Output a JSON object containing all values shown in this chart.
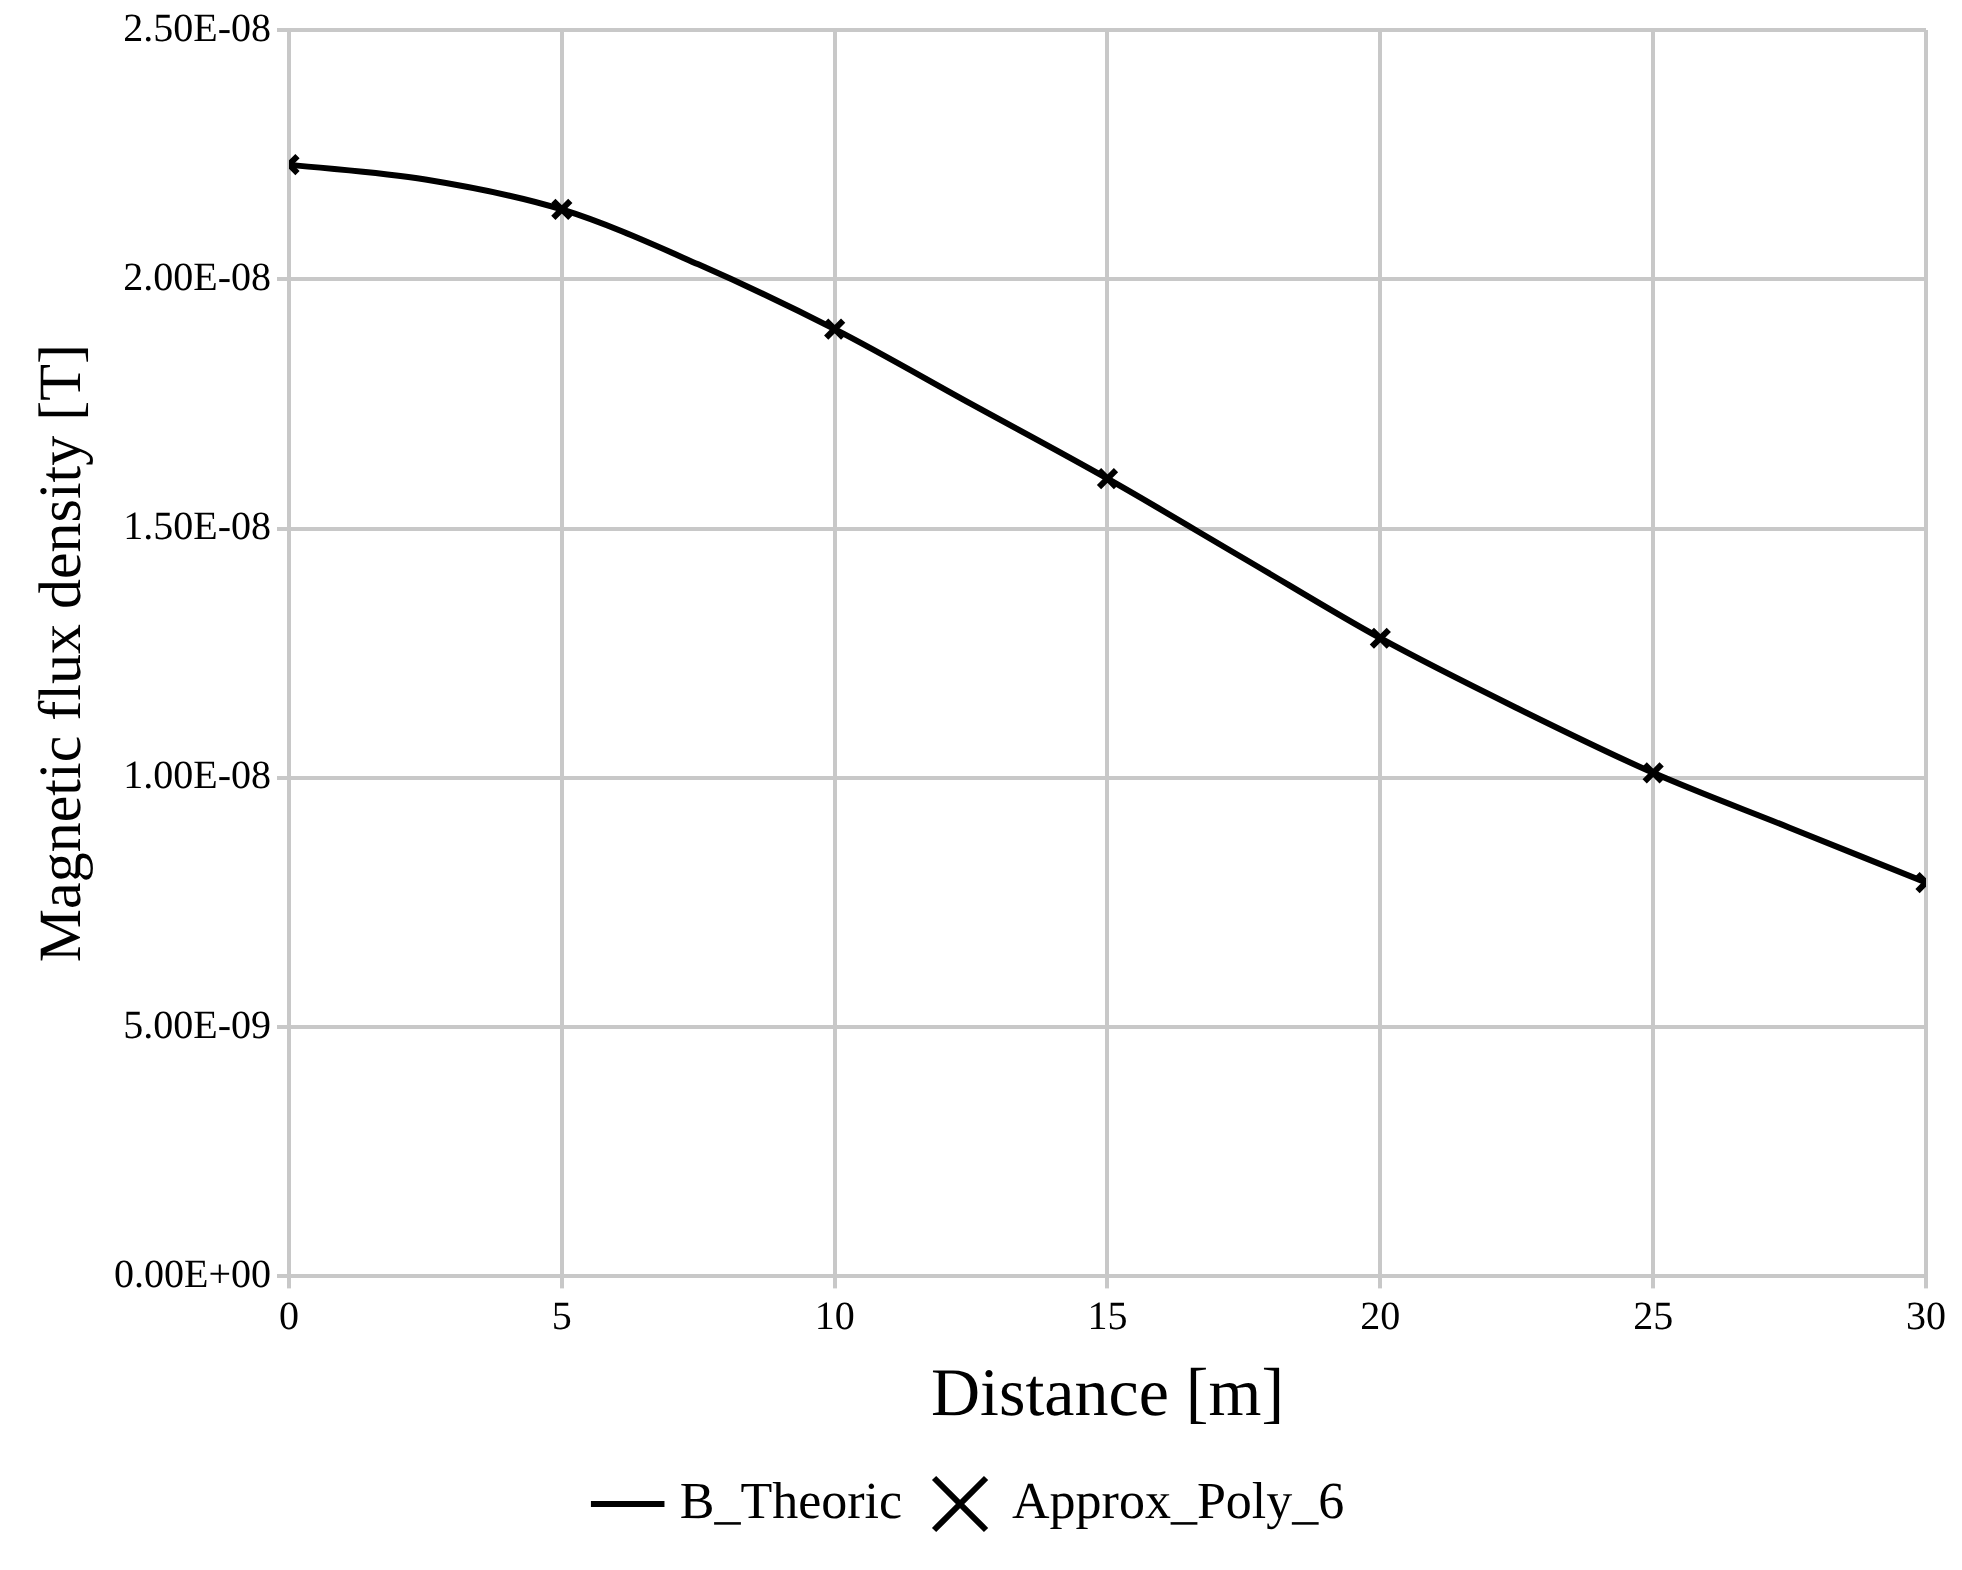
{
  "chart_data": {
    "type": "line",
    "xlabel": "Distance [m]",
    "ylabel": "Magnetic flux density [T]",
    "xlim": [
      0,
      30
    ],
    "xticks": [
      0,
      5,
      10,
      15,
      20,
      25,
      30
    ],
    "ylim": [
      0,
      2.5e-08
    ],
    "yticks": [
      {
        "value": 0,
        "label": "0.00E+00"
      },
      {
        "value": 5e-09,
        "label": "5.00E-09"
      },
      {
        "value": 1e-08,
        "label": "1.00E-08"
      },
      {
        "value": 1.5e-08,
        "label": "1.50E-08"
      },
      {
        "value": 2e-08,
        "label": "2.00E-08"
      },
      {
        "value": 2.5e-08,
        "label": "2.50E-08"
      }
    ],
    "grid": true,
    "legend": "bottom",
    "series": [
      {
        "name": "B_Theoric",
        "color": "#000000",
        "marker": "none",
        "x": [
          0,
          2.5,
          5,
          7.5,
          10,
          12.5,
          15,
          17.5,
          20,
          22.5,
          25,
          27.5,
          30
        ],
        "values": [
          2.23e-08,
          2.2e-08,
          2.14e-08,
          2.03e-08,
          1.9e-08,
          1.75e-08,
          1.6e-08,
          1.44e-08,
          1.28e-08,
          1.14e-08,
          1.01e-08,
          9e-09,
          7.9e-09
        ]
      },
      {
        "name": "Approx_Poly_6",
        "type": "scatter",
        "color": "#000000",
        "marker": "cross",
        "x": [
          0,
          5,
          10,
          15,
          20,
          25,
          30
        ],
        "values": [
          2.23e-08,
          2.14e-08,
          1.9e-08,
          1.6e-08,
          1.28e-08,
          1.01e-08,
          7.9e-09
        ]
      }
    ]
  }
}
